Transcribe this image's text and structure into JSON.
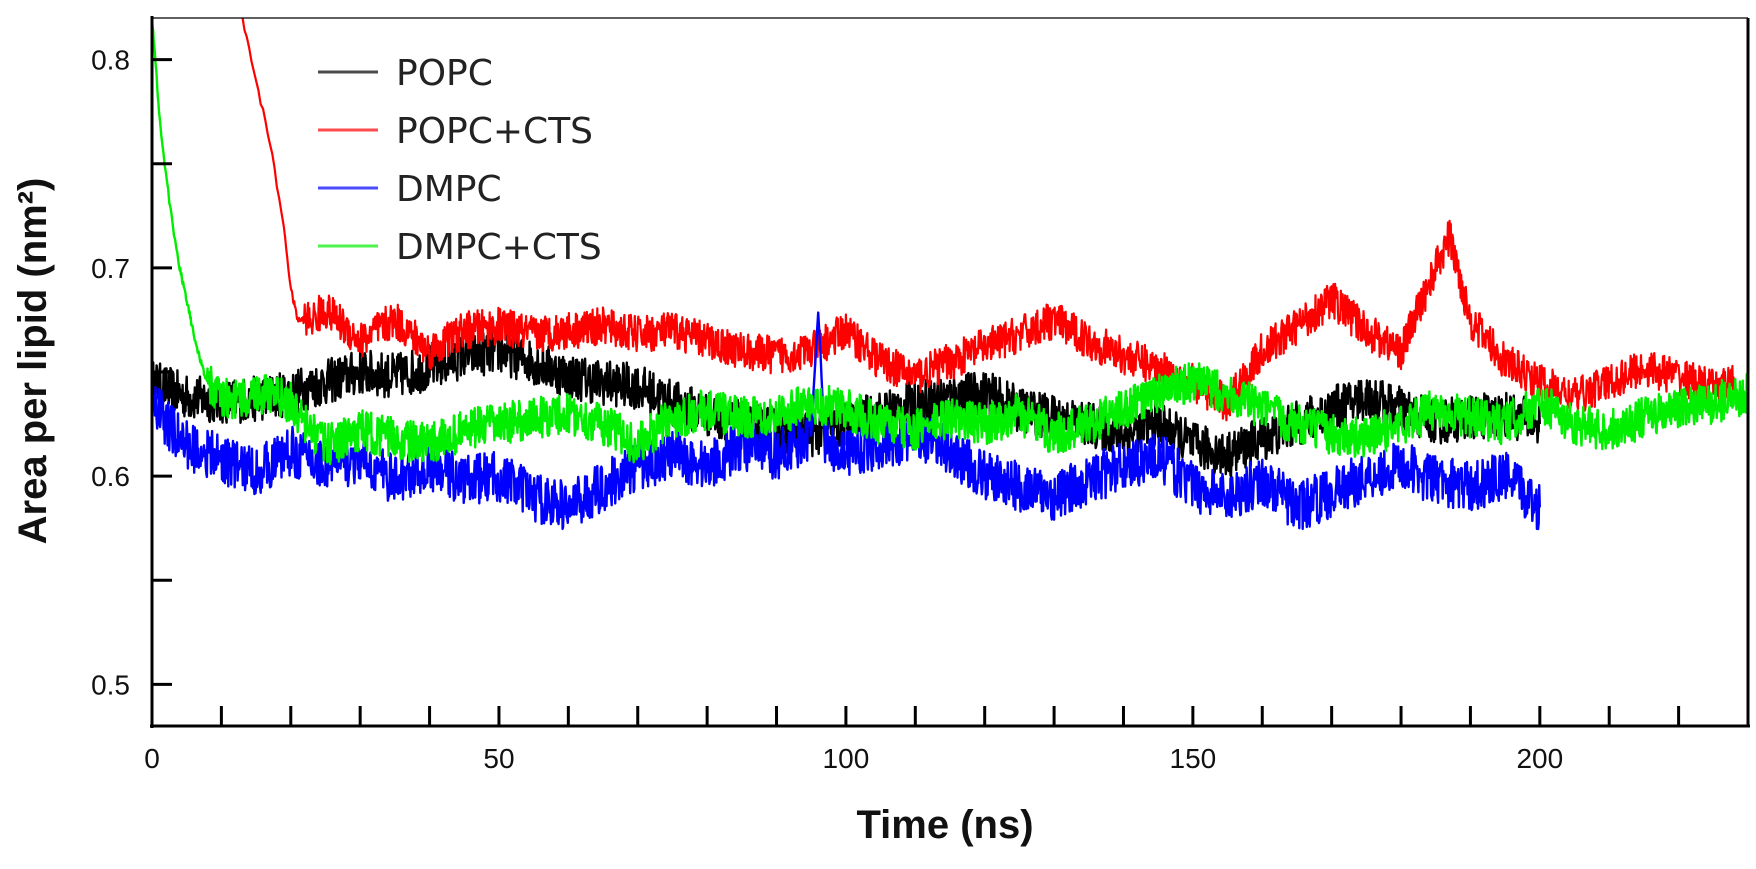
{
  "chart_data": {
    "type": "line",
    "title": "",
    "xlabel": "Time (ns)",
    "ylabel": "Area per lipid (nm²)",
    "xlim": [
      0,
      230
    ],
    "ylim": [
      0.48,
      0.82
    ],
    "x_ticks": [
      0,
      50,
      100,
      150,
      200
    ],
    "x_tick_labels": [
      "0",
      "50",
      "100",
      "150",
      "200"
    ],
    "x_minor_step": 10,
    "y_ticks": [
      0.5,
      0.6,
      0.7,
      0.8
    ],
    "y_tick_labels": [
      "0.5",
      "0.6",
      "0.7",
      "0.8"
    ],
    "y_minor_step": 0.05,
    "grid": false,
    "legend_position": "top-left",
    "series": [
      {
        "name": "POPC",
        "color": "#000000",
        "x": [
          0,
          5,
          10,
          15,
          20,
          25,
          30,
          35,
          40,
          45,
          50,
          55,
          60,
          65,
          70,
          75,
          80,
          85,
          90,
          95,
          100,
          105,
          110,
          115,
          120,
          125,
          130,
          135,
          140,
          145,
          150,
          155,
          160,
          165,
          170,
          175,
          180,
          185,
          190,
          195,
          200
        ],
        "values": [
          0.645,
          0.638,
          0.636,
          0.637,
          0.64,
          0.645,
          0.65,
          0.648,
          0.652,
          0.658,
          0.66,
          0.655,
          0.648,
          0.645,
          0.643,
          0.635,
          0.63,
          0.625,
          0.622,
          0.62,
          0.625,
          0.63,
          0.635,
          0.638,
          0.64,
          0.632,
          0.628,
          0.625,
          0.62,
          0.625,
          0.615,
          0.61,
          0.618,
          0.625,
          0.632,
          0.638,
          0.632,
          0.626,
          0.628,
          0.63,
          0.625
        ]
      },
      {
        "name": "POPC+CTS",
        "color": "#ff0000",
        "x": [
          13,
          15,
          17,
          19,
          20,
          21,
          23,
          25,
          30,
          35,
          40,
          45,
          50,
          55,
          60,
          65,
          70,
          75,
          80,
          85,
          90,
          95,
          100,
          105,
          110,
          115,
          120,
          125,
          130,
          135,
          140,
          145,
          150,
          155,
          160,
          165,
          170,
          175,
          180,
          185,
          187,
          190,
          195,
          200,
          205,
          210,
          215,
          220,
          225,
          228
        ],
        "values": [
          0.82,
          0.79,
          0.76,
          0.72,
          0.69,
          0.675,
          0.675,
          0.68,
          0.665,
          0.675,
          0.66,
          0.67,
          0.672,
          0.668,
          0.67,
          0.672,
          0.668,
          0.67,
          0.665,
          0.66,
          0.658,
          0.66,
          0.67,
          0.655,
          0.648,
          0.655,
          0.662,
          0.668,
          0.675,
          0.665,
          0.658,
          0.652,
          0.645,
          0.635,
          0.66,
          0.672,
          0.685,
          0.67,
          0.66,
          0.7,
          0.715,
          0.675,
          0.655,
          0.645,
          0.638,
          0.645,
          0.652,
          0.648,
          0.642,
          0.645
        ]
      },
      {
        "name": "DMPC",
        "color": "#0000ff",
        "x": [
          0,
          2,
          5,
          10,
          15,
          20,
          25,
          30,
          35,
          40,
          45,
          50,
          55,
          60,
          65,
          70,
          75,
          80,
          85,
          90,
          95,
          96,
          97,
          100,
          105,
          110,
          115,
          120,
          125,
          130,
          135,
          140,
          145,
          150,
          155,
          160,
          165,
          170,
          175,
          180,
          185,
          190,
          195,
          200
        ],
        "values": [
          0.64,
          0.625,
          0.615,
          0.608,
          0.602,
          0.612,
          0.605,
          0.608,
          0.598,
          0.605,
          0.598,
          0.6,
          0.59,
          0.585,
          0.595,
          0.605,
          0.61,
          0.605,
          0.615,
          0.61,
          0.62,
          0.68,
          0.615,
          0.612,
          0.615,
          0.618,
          0.612,
          0.6,
          0.595,
          0.59,
          0.598,
          0.605,
          0.61,
          0.595,
          0.59,
          0.598,
          0.585,
          0.592,
          0.6,
          0.605,
          0.598,
          0.595,
          0.6,
          0.585
        ]
      },
      {
        "name": "DMPC+CTS",
        "color": "#00ee00",
        "x": [
          0,
          0.5,
          1,
          2,
          3,
          4,
          5,
          6,
          7,
          8,
          9,
          10,
          12,
          15,
          18,
          20,
          22,
          25,
          28,
          30,
          35,
          40,
          45,
          50,
          55,
          60,
          65,
          70,
          75,
          80,
          85,
          90,
          95,
          100,
          105,
          110,
          115,
          120,
          125,
          130,
          135,
          140,
          145,
          150,
          155,
          160,
          165,
          170,
          175,
          180,
          185,
          190,
          195,
          200,
          205,
          210,
          215,
          220,
          225,
          230
        ],
        "values": [
          0.82,
          0.8,
          0.775,
          0.745,
          0.72,
          0.7,
          0.685,
          0.668,
          0.655,
          0.645,
          0.64,
          0.638,
          0.636,
          0.64,
          0.638,
          0.635,
          0.625,
          0.615,
          0.618,
          0.622,
          0.618,
          0.615,
          0.622,
          0.625,
          0.628,
          0.63,
          0.625,
          0.615,
          0.628,
          0.632,
          0.628,
          0.63,
          0.635,
          0.632,
          0.625,
          0.622,
          0.628,
          0.625,
          0.63,
          0.62,
          0.625,
          0.632,
          0.64,
          0.645,
          0.64,
          0.632,
          0.625,
          0.62,
          0.618,
          0.625,
          0.632,
          0.628,
          0.625,
          0.635,
          0.625,
          0.622,
          0.628,
          0.632,
          0.635,
          0.64
        ]
      }
    ]
  }
}
